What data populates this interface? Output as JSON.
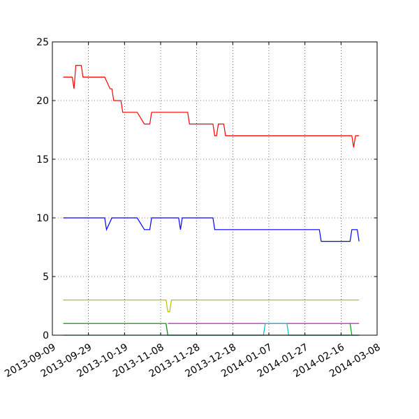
{
  "chart_data": {
    "type": "line",
    "title": "",
    "xlabel": "",
    "ylabel": "",
    "x_axis_type": "date",
    "xlim": [
      "2013-09-09",
      "2014-03-08"
    ],
    "ylim": [
      0,
      25
    ],
    "x_ticks": [
      "2013-09-09",
      "2013-09-29",
      "2013-10-19",
      "2013-11-08",
      "2013-11-28",
      "2013-12-18",
      "2014-01-07",
      "2014-01-27",
      "2014-02-16",
      "2014-03-08"
    ],
    "y_ticks": [
      0,
      5,
      10,
      15,
      20,
      25
    ],
    "grid": true,
    "grid_style": "dotted",
    "legend": "none",
    "series": [
      {
        "color": "#ff0000",
        "points": [
          [
            "2013-09-15",
            22
          ],
          [
            "2013-09-20",
            22
          ],
          [
            "2013-09-21",
            21
          ],
          [
            "2013-09-22",
            23
          ],
          [
            "2013-09-25",
            23
          ],
          [
            "2013-09-26",
            22
          ],
          [
            "2013-10-08",
            22
          ],
          [
            "2013-10-11",
            21
          ],
          [
            "2013-10-12",
            21
          ],
          [
            "2013-10-13",
            20
          ],
          [
            "2013-10-17",
            20
          ],
          [
            "2013-10-18",
            19
          ],
          [
            "2013-10-26",
            19
          ],
          [
            "2013-10-30",
            18
          ],
          [
            "2013-11-02",
            18
          ],
          [
            "2013-11-03",
            19
          ],
          [
            "2013-11-23",
            19
          ],
          [
            "2013-11-24",
            18
          ],
          [
            "2013-12-07",
            18
          ],
          [
            "2013-12-08",
            17
          ],
          [
            "2013-12-09",
            17
          ],
          [
            "2013-12-10",
            18
          ],
          [
            "2013-12-13",
            18
          ],
          [
            "2013-12-14",
            17
          ],
          [
            "2014-02-22",
            17
          ],
          [
            "2014-02-23",
            16
          ],
          [
            "2014-02-24",
            17
          ],
          [
            "2014-02-26",
            17
          ]
        ]
      },
      {
        "color": "#0000ff",
        "points": [
          [
            "2013-09-15",
            10
          ],
          [
            "2013-10-08",
            10
          ],
          [
            "2013-10-09",
            9
          ],
          [
            "2013-10-12",
            10
          ],
          [
            "2013-10-26",
            10
          ],
          [
            "2013-10-30",
            9
          ],
          [
            "2013-11-02",
            9
          ],
          [
            "2013-11-03",
            10
          ],
          [
            "2013-11-18",
            10
          ],
          [
            "2013-11-19",
            9
          ],
          [
            "2013-11-20",
            10
          ],
          [
            "2013-12-07",
            10
          ],
          [
            "2013-12-08",
            9
          ],
          [
            "2014-02-04",
            9
          ],
          [
            "2014-02-05",
            8
          ],
          [
            "2014-02-21",
            8
          ],
          [
            "2014-02-22",
            9
          ],
          [
            "2014-02-25",
            9
          ],
          [
            "2014-02-26",
            8
          ]
        ]
      },
      {
        "color": "#bfbf00",
        "points": [
          [
            "2013-09-15",
            3
          ],
          [
            "2013-11-11",
            3
          ],
          [
            "2013-11-12",
            2
          ],
          [
            "2013-11-13",
            2
          ],
          [
            "2013-11-14",
            3
          ],
          [
            "2014-02-26",
            3
          ]
        ]
      },
      {
        "color": "#bf00bf",
        "points": [
          [
            "2013-11-12",
            1
          ],
          [
            "2014-02-26",
            1
          ]
        ]
      },
      {
        "color": "#00bfbf",
        "points": [
          [
            "2013-09-15",
            0
          ],
          [
            "2014-01-04",
            0
          ],
          [
            "2014-01-05",
            1
          ],
          [
            "2014-01-17",
            1
          ],
          [
            "2014-01-18",
            0
          ],
          [
            "2014-02-26",
            0
          ]
        ]
      },
      {
        "color": "#008000",
        "points": [
          [
            "2013-09-15",
            1
          ],
          [
            "2013-11-11",
            1
          ],
          [
            "2013-11-12",
            0
          ],
          [
            "2014-02-21",
            0
          ]
        ]
      },
      {
        "color": "#00a000",
        "points": [
          [
            "2014-02-21",
            1
          ],
          [
            "2014-02-22",
            0
          ],
          [
            "2014-02-26",
            0
          ]
        ]
      }
    ]
  }
}
